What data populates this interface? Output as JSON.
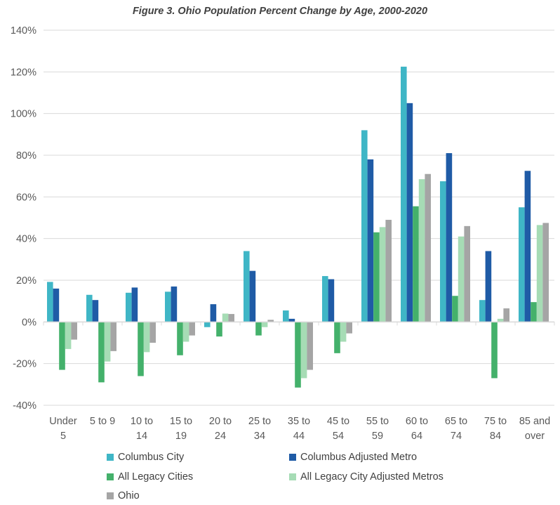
{
  "chart_data": {
    "type": "bar",
    "title": "Figure 3. Ohio Population Percent Change by Age, 2000-2020",
    "xlabel": "",
    "ylabel": "",
    "ylim": [
      -40,
      140
    ],
    "yticks": [
      "-40%",
      "-20%",
      "0%",
      "20%",
      "40%",
      "60%",
      "80%",
      "100%",
      "120%",
      "140%"
    ],
    "grid": true,
    "legend_position": "bottom",
    "categories": [
      [
        "Under",
        "5"
      ],
      [
        "5 to 9",
        ""
      ],
      [
        "10 to",
        "14"
      ],
      [
        "15 to",
        "19"
      ],
      [
        "20 to",
        "24"
      ],
      [
        "25 to",
        "34"
      ],
      [
        "35 to",
        "44"
      ],
      [
        "45 to",
        "54"
      ],
      [
        "55 to",
        "59"
      ],
      [
        "60 to",
        "64"
      ],
      [
        "65 to",
        "74"
      ],
      [
        "75 to",
        "84"
      ],
      [
        "85 and",
        "over"
      ]
    ],
    "series": [
      {
        "name": "Columbus City",
        "color": "#3fb6c6",
        "values": [
          19.2,
          13,
          14,
          14.5,
          -2.5,
          34,
          5.5,
          22,
          92,
          122.5,
          67.5,
          10.5,
          55
        ]
      },
      {
        "name": "Columbus Adjusted Metro",
        "color": "#1f5ba6",
        "values": [
          16,
          10.5,
          16.5,
          17,
          8.5,
          24.5,
          1.5,
          20.5,
          78,
          105,
          81,
          34,
          72.5
        ]
      },
      {
        "name": "All Legacy Cities",
        "color": "#44b16b",
        "values": [
          -23,
          -29,
          -26,
          -16,
          -7,
          -6.5,
          -31.5,
          -15,
          43,
          55.5,
          12.5,
          -27,
          9.5
        ]
      },
      {
        "name": "All Legacy City Adjusted Metros",
        "color": "#a6dcb5",
        "values": [
          -13,
          -19,
          -14.5,
          -9.5,
          4,
          -2.5,
          -27,
          -9.5,
          45.5,
          68.5,
          41,
          1.5,
          46.5
        ]
      },
      {
        "name": "Ohio",
        "color": "#a5a5a5",
        "values": [
          -8.5,
          -14,
          -10,
          -6.5,
          3.8,
          1,
          -23,
          -5.5,
          49,
          71,
          46,
          6.5,
          47.5
        ]
      }
    ]
  }
}
